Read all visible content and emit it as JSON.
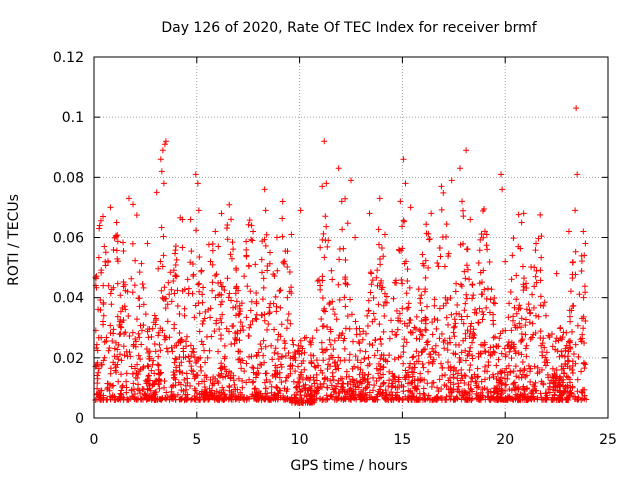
{
  "chart_data": {
    "type": "scatter",
    "title": "Day 126 of 2020, Rate Of TEC Index for receiver brmf",
    "xlabel": "GPS time / hours",
    "ylabel": "ROTI / TECUs",
    "xlim": [
      0,
      25
    ],
    "ylim": [
      0,
      0.12
    ],
    "x_ticks": [
      0,
      5,
      10,
      15,
      20,
      25
    ],
    "x_tick_labels": [
      "0",
      "5",
      "10",
      "15",
      "20",
      "25"
    ],
    "y_ticks": [
      0,
      0.02,
      0.04,
      0.06,
      0.08,
      0.1,
      0.12
    ],
    "y_tick_labels": [
      "0",
      "0.02",
      "0.04",
      "0.06",
      "0.08",
      "0.1",
      "0.12"
    ],
    "grid": true,
    "marker": "plus",
    "color": "#ff0000",
    "series": [
      {
        "points": [
          [
            0.25,
            0.063
          ],
          [
            0.5,
            0.057
          ],
          [
            0.8,
            0.07
          ],
          [
            1.1,
            0.065
          ],
          [
            1.7,
            0.073
          ],
          [
            1.9,
            0.071
          ],
          [
            2.6,
            0.058
          ],
          [
            3.05,
            0.075
          ],
          [
            3.25,
            0.086
          ],
          [
            3.35,
            0.089
          ],
          [
            3.45,
            0.091
          ],
          [
            3.5,
            0.092
          ],
          [
            3.3,
            0.082
          ],
          [
            3.4,
            0.078
          ],
          [
            4.3,
            0.066
          ],
          [
            4.7,
            0.066
          ],
          [
            4.95,
            0.081
          ],
          [
            5.05,
            0.078
          ],
          [
            5.1,
            0.069
          ],
          [
            5.9,
            0.062
          ],
          [
            6.2,
            0.068
          ],
          [
            7.7,
            0.059
          ],
          [
            8.3,
            0.076
          ],
          [
            8.35,
            0.069
          ],
          [
            8.9,
            0.06
          ],
          [
            9.6,
            0.061
          ],
          [
            10.05,
            0.069
          ],
          [
            11.1,
            0.077
          ],
          [
            11.2,
            0.092
          ],
          [
            11.3,
            0.078
          ],
          [
            11.9,
            0.083
          ],
          [
            12.05,
            0.072
          ],
          [
            12.5,
            0.079
          ],
          [
            12.7,
            0.06
          ],
          [
            13.4,
            0.068
          ],
          [
            13.9,
            0.073
          ],
          [
            14.15,
            0.061
          ],
          [
            14.9,
            0.072
          ],
          [
            15.05,
            0.086
          ],
          [
            15.15,
            0.078
          ],
          [
            15.4,
            0.07
          ],
          [
            16.4,
            0.068
          ],
          [
            16.9,
            0.077
          ],
          [
            17.4,
            0.079
          ],
          [
            17.8,
            0.083
          ],
          [
            18.1,
            0.089
          ],
          [
            17.9,
            0.072
          ],
          [
            18.3,
            0.066
          ],
          [
            19.1,
            0.061
          ],
          [
            19.8,
            0.081
          ],
          [
            19.85,
            0.076
          ],
          [
            20.0,
            0.052
          ],
          [
            20.8,
            0.065
          ],
          [
            20.9,
            0.068
          ],
          [
            21.5,
            0.058
          ],
          [
            22.5,
            0.048
          ],
          [
            23.1,
            0.062
          ],
          [
            23.4,
            0.069
          ],
          [
            23.45,
            0.103
          ],
          [
            23.5,
            0.081
          ],
          [
            23.8,
            0.062
          ],
          [
            23.9,
            0.058
          ]
        ]
      }
    ]
  }
}
